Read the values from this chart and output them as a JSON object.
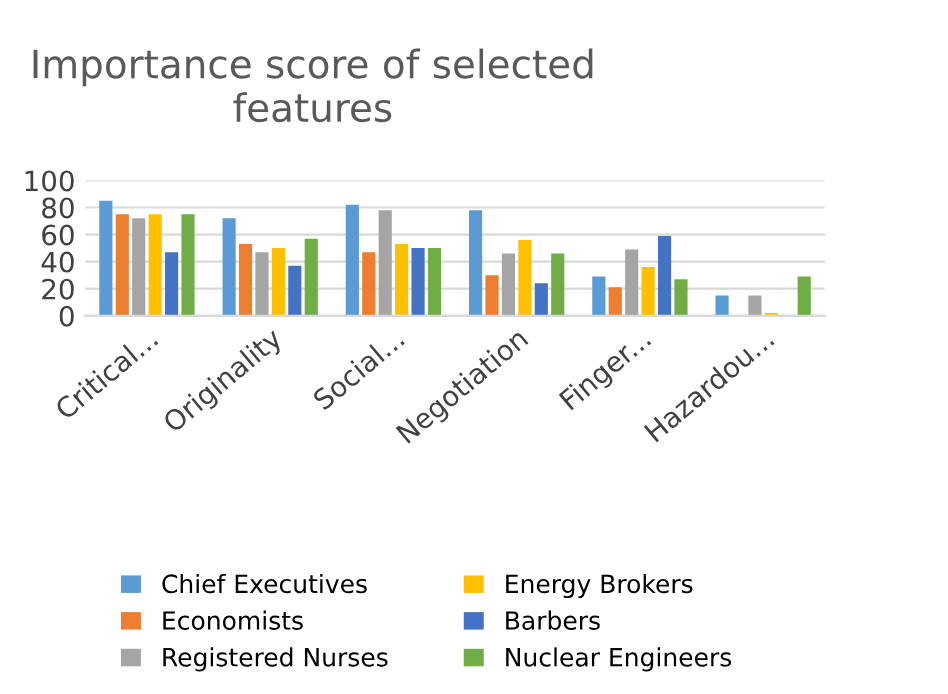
{
  "chart_data": {
    "type": "bar",
    "title": "Importance score of selected features",
    "categories": [
      "Critical...",
      "Originality",
      "Social...",
      "Negotiation",
      "Finger...",
      "Hazardou..."
    ],
    "series": [
      {
        "name": "Chief Executives",
        "color": "#5b9bd5",
        "values": [
          85,
          72,
          82,
          78,
          29,
          15
        ]
      },
      {
        "name": "Economists",
        "color": "#ed7d31",
        "values": [
          75,
          53,
          47,
          30,
          21,
          0
        ]
      },
      {
        "name": "Registered Nurses",
        "color": "#a5a5a5",
        "values": [
          72,
          47,
          78,
          46,
          49,
          15
        ]
      },
      {
        "name": "Energy Brokers",
        "color": "#ffc000",
        "values": [
          75,
          50,
          53,
          56,
          36,
          2
        ]
      },
      {
        "name": "Barbers",
        "color": "#4472c4",
        "values": [
          47,
          37,
          50,
          24,
          59,
          0
        ]
      },
      {
        "name": "Nuclear Engineers",
        "color": "#70ad47",
        "values": [
          75,
          57,
          50,
          46,
          27,
          29
        ]
      }
    ],
    "ylim": [
      0,
      100
    ],
    "yticks": [
      0,
      20,
      40,
      60,
      80,
      100
    ],
    "grid": "y",
    "legend": "bottom"
  }
}
